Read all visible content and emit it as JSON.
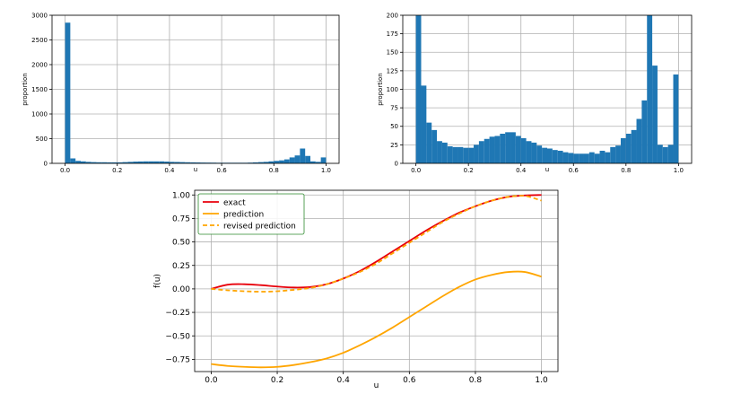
{
  "chart_data": [
    {
      "type": "bar",
      "xlabel": "u",
      "ylabel": "proportion",
      "xlim": [
        -0.05,
        1.05
      ],
      "ylim": [
        0,
        3000
      ],
      "xticks": [
        0.0,
        0.2,
        0.4,
        0.6,
        0.8,
        1.0
      ],
      "xtick_labels": [
        "0.0",
        "0.2",
        "0.4",
        "0.6",
        "0.8",
        "1.0"
      ],
      "yticks": [
        0,
        500,
        1000,
        1500,
        2000,
        2500,
        3000
      ],
      "ytick_labels": [
        "0",
        "500",
        "1000",
        "1500",
        "2000",
        "2500",
        "3000"
      ],
      "grid": true,
      "bar_color": "#1f77b4",
      "bin_width": 0.02,
      "bin_starts": [
        0.0,
        0.02,
        0.04,
        0.06,
        0.08,
        0.1,
        0.12,
        0.14,
        0.16,
        0.18,
        0.2,
        0.22,
        0.24,
        0.26,
        0.28,
        0.3,
        0.32,
        0.34,
        0.36,
        0.38,
        0.4,
        0.42,
        0.44,
        0.46,
        0.48,
        0.5,
        0.52,
        0.54,
        0.56,
        0.58,
        0.6,
        0.62,
        0.64,
        0.66,
        0.68,
        0.7,
        0.72,
        0.74,
        0.76,
        0.78,
        0.8,
        0.82,
        0.84,
        0.86,
        0.88,
        0.9,
        0.92,
        0.94,
        0.96,
        0.98
      ],
      "values": [
        2850,
        100,
        50,
        40,
        30,
        25,
        22,
        22,
        20,
        20,
        20,
        25,
        30,
        35,
        38,
        40,
        40,
        40,
        40,
        35,
        30,
        28,
        25,
        22,
        20,
        18,
        16,
        15,
        14,
        12,
        12,
        12,
        12,
        12,
        12,
        15,
        20,
        25,
        30,
        40,
        50,
        60,
        80,
        120,
        160,
        300,
        150,
        40,
        30,
        120
      ]
    },
    {
      "type": "bar",
      "xlabel": "u",
      "ylabel": "proportion",
      "xlim": [
        -0.05,
        1.05
      ],
      "ylim": [
        0,
        200
      ],
      "xticks": [
        0.0,
        0.2,
        0.4,
        0.6,
        0.8,
        1.0
      ],
      "xtick_labels": [
        "0.0",
        "0.2",
        "0.4",
        "0.6",
        "0.8",
        "1.0"
      ],
      "yticks": [
        0,
        25,
        50,
        75,
        100,
        125,
        150,
        175,
        200
      ],
      "ytick_labels": [
        "0",
        "25",
        "50",
        "75",
        "100",
        "125",
        "150",
        "175",
        "200"
      ],
      "grid": true,
      "bar_color": "#1f77b4",
      "bin_width": 0.02,
      "bin_starts": [
        0.0,
        0.02,
        0.04,
        0.06,
        0.08,
        0.1,
        0.12,
        0.14,
        0.16,
        0.18,
        0.2,
        0.22,
        0.24,
        0.26,
        0.28,
        0.3,
        0.32,
        0.34,
        0.36,
        0.38,
        0.4,
        0.42,
        0.44,
        0.46,
        0.48,
        0.5,
        0.52,
        0.54,
        0.56,
        0.58,
        0.6,
        0.62,
        0.64,
        0.66,
        0.68,
        0.7,
        0.72,
        0.74,
        0.76,
        0.78,
        0.8,
        0.82,
        0.84,
        0.86,
        0.88,
        0.9,
        0.92,
        0.94,
        0.96,
        0.98
      ],
      "values": [
        200,
        105,
        55,
        45,
        30,
        28,
        23,
        22,
        22,
        21,
        21,
        25,
        30,
        33,
        36,
        37,
        40,
        42,
        42,
        37,
        34,
        30,
        28,
        24,
        21,
        20,
        18,
        17,
        15,
        14,
        13,
        13,
        13,
        15,
        13,
        17,
        15,
        22,
        24,
        34,
        40,
        45,
        60,
        85,
        200,
        132,
        25,
        22,
        25,
        120
      ]
    },
    {
      "type": "line",
      "xlabel": "u",
      "ylabel": "f(u)",
      "xlim": [
        -0.05,
        1.05
      ],
      "ylim": [
        -0.88,
        1.05
      ],
      "xticks": [
        0.0,
        0.2,
        0.4,
        0.6,
        0.8,
        1.0
      ],
      "xtick_labels": [
        "0.0",
        "0.2",
        "0.4",
        "0.6",
        "0.8",
        "1.0"
      ],
      "yticks": [
        -0.75,
        -0.5,
        -0.25,
        0.0,
        0.25,
        0.5,
        0.75,
        1.0
      ],
      "ytick_labels": [
        "−0.75",
        "−0.50",
        "−0.25",
        "0.00",
        "0.25",
        "0.50",
        "0.75",
        "1.00"
      ],
      "grid": true,
      "legend_position": "top-left",
      "x": [
        0.0,
        0.05,
        0.1,
        0.15,
        0.2,
        0.25,
        0.3,
        0.35,
        0.4,
        0.45,
        0.5,
        0.55,
        0.6,
        0.65,
        0.7,
        0.75,
        0.8,
        0.85,
        0.9,
        0.95,
        1.0
      ],
      "series": [
        {
          "name": "exact",
          "color": "#e8000b",
          "style": "solid",
          "values": [
            0.0,
            0.045,
            0.05,
            0.04,
            0.025,
            0.015,
            0.02,
            0.05,
            0.11,
            0.19,
            0.29,
            0.4,
            0.51,
            0.62,
            0.72,
            0.81,
            0.88,
            0.94,
            0.98,
            0.995,
            1.0
          ]
        },
        {
          "name": "prediction",
          "color": "#ffa500",
          "style": "solid",
          "values": [
            -0.8,
            -0.82,
            -0.83,
            -0.835,
            -0.83,
            -0.81,
            -0.78,
            -0.74,
            -0.68,
            -0.6,
            -0.51,
            -0.41,
            -0.3,
            -0.19,
            -0.08,
            0.02,
            0.1,
            0.15,
            0.18,
            0.18,
            0.13
          ]
        },
        {
          "name": "revised prediction",
          "color": "#ffa500",
          "style": "dashed",
          "values": [
            0.0,
            -0.015,
            -0.025,
            -0.03,
            -0.025,
            -0.01,
            0.01,
            0.05,
            0.11,
            0.18,
            0.27,
            0.38,
            0.49,
            0.6,
            0.71,
            0.8,
            0.88,
            0.94,
            0.98,
            0.99,
            0.94
          ]
        }
      ]
    }
  ]
}
